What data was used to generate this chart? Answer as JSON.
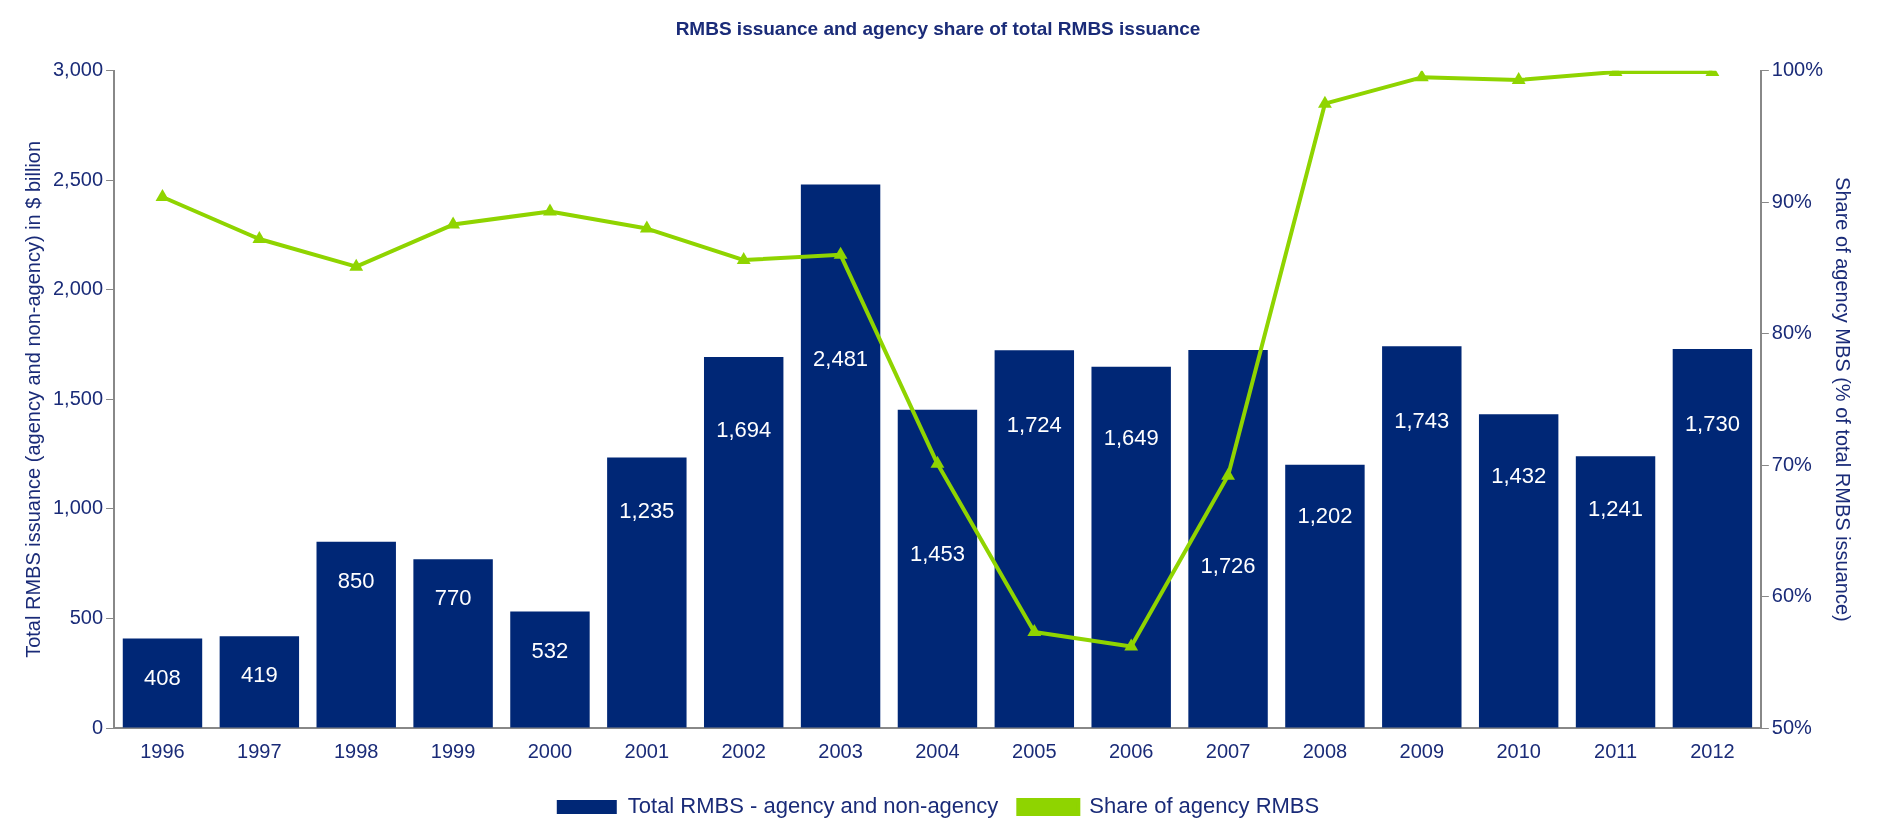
{
  "chart_data": {
    "type": "bar",
    "title": "RMBS issuance and agency share of total RMBS issuance",
    "ylabel": "Total RMBS issuance (agency and non-agency) in $ billion",
    "y2label": "Share of agency MBS (% of total RMBS issuance)",
    "categories": [
      "1996",
      "1997",
      "1998",
      "1999",
      "2000",
      "2001",
      "2002",
      "2003",
      "2004",
      "2005",
      "2006",
      "2007",
      "2008",
      "2009",
      "2010",
      "2011",
      "2012"
    ],
    "series": [
      {
        "name": "Total RMBS - agency and non-agency",
        "color": "#002776",
        "values": [
          408,
          419,
          850,
          770,
          532,
          1235,
          1694,
          2481,
          1453,
          1724,
          1649,
          1726,
          1202,
          1743,
          1432,
          1241,
          1730
        ],
        "value_labels": [
          "408",
          "419",
          "850",
          "770",
          "532",
          "1,235",
          "1,694",
          "2,481",
          "1,453",
          "1,724",
          "1,649",
          "1,726",
          "1,202",
          "1,743",
          "1,432",
          "1,241",
          "1,730"
        ]
      },
      {
        "name": "Share of agency RMBS",
        "type": "line",
        "axis": "y2",
        "color": "#8fd400",
        "marker": "triangle",
        "values": [
          90.4,
          87.2,
          85.1,
          88.3,
          89.3,
          88.0,
          85.6,
          86.0,
          70.1,
          57.3,
          56.2,
          69.2,
          97.5,
          99.5,
          99.3,
          99.9,
          99.9
        ]
      }
    ],
    "ylim": [
      0,
      3000
    ],
    "yticks": [
      0,
      500,
      {
        "value": 1000,
        "label": "1,000"
      },
      {
        "value": 1500,
        "label": "1,500"
      },
      {
        "value": 2000,
        "label": "2,000"
      },
      {
        "value": 2500,
        "label": "2,500"
      },
      {
        "value": 3000,
        "label": "3,000"
      }
    ],
    "y2lim": [
      50,
      100
    ],
    "y2ticks": [
      {
        "value": 50,
        "label": "50%"
      },
      {
        "value": 60,
        "label": "60%"
      },
      {
        "value": 70,
        "label": "70%"
      },
      {
        "value": 80,
        "label": "80%"
      },
      {
        "value": 90,
        "label": "90%"
      },
      {
        "value": 100,
        "label": "100%"
      }
    ],
    "grid": false,
    "legend": "bottom"
  }
}
